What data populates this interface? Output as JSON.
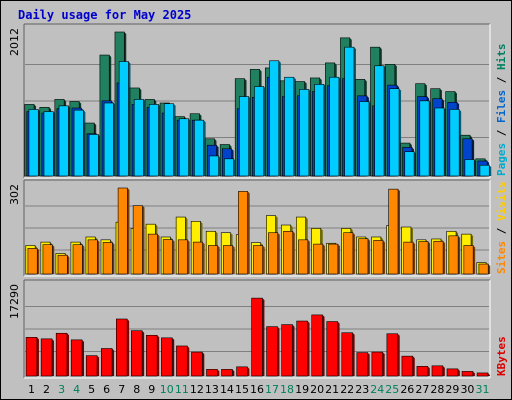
{
  "chart_data": {
    "type": "bar",
    "title": "Daily usage for May 2025",
    "categories": [
      "1",
      "2",
      "3",
      "4",
      "5",
      "6",
      "7",
      "8",
      "9",
      "10",
      "11",
      "12",
      "13",
      "14",
      "15",
      "16",
      "17",
      "18",
      "19",
      "20",
      "21",
      "22",
      "23",
      "24",
      "25",
      "26",
      "27",
      "28",
      "29",
      "30",
      "31"
    ],
    "weekend_days": [
      "3",
      "4",
      "10",
      "11",
      "17",
      "18",
      "24",
      "25",
      "31"
    ],
    "panels": [
      {
        "id": "hits",
        "ymax_label": "2012",
        "ymax": 2012,
        "legend": [
          {
            "text": "Pages",
            "color": "#00aacc"
          },
          {
            "text": " / ",
            "color": "#000000"
          },
          {
            "text": "Files",
            "color": "#0066cc"
          },
          {
            "text": " / ",
            "color": "#000000"
          },
          {
            "text": "Hits",
            "color": "#008060"
          }
        ],
        "series": [
          {
            "name": "Hits",
            "color": "#208060",
            "values": [
              1000,
              960,
              1070,
              1040,
              740,
              1690,
              2012,
              1230,
              1070,
              1020,
              830,
              870,
              520,
              440,
              1360,
              1490,
              1510,
              1330,
              1320,
              1370,
              1580,
              1930,
              1350,
              1800,
              1560,
              460,
              1290,
              1220,
              1180,
              570,
              240
            ]
          },
          {
            "name": "Files",
            "color": "#0044cc",
            "values": [
              900,
              880,
              940,
              950,
              590,
              1050,
              1300,
              1000,
              960,
              880,
              780,
              780,
              430,
              380,
              940,
              1100,
              1380,
              1110,
              1120,
              1180,
              1260,
              1360,
              1120,
              980,
              1270,
              400,
              1110,
              1080,
              1030,
              520,
              210
            ]
          },
          {
            "name": "Pages",
            "color": "#00ccff",
            "values": [
              930,
              900,
              980,
              920,
              580,
              1020,
              1600,
              1070,
              1000,
              1010,
              800,
              780,
              280,
              240,
              1110,
              1250,
              1610,
              1380,
              1210,
              1280,
              1380,
              1800,
              1040,
              1540,
              1220,
              340,
              1050,
              950,
              930,
              230,
              150
            ]
          }
        ]
      },
      {
        "id": "visits",
        "ymax_label": "302",
        "ymax": 302,
        "legend": [
          {
            "text": "Sites",
            "color": "#ff8800"
          },
          {
            "text": " / ",
            "color": "#000000"
          },
          {
            "text": "Visits",
            "color": "#ffcc00"
          }
        ],
        "series": [
          {
            "name": "Visits",
            "color": "#ffee00",
            "values": [
              100,
              112,
              72,
              112,
              130,
              120,
              182,
              160,
              175,
              130,
              200,
              185,
              150,
              145,
              138,
              110,
              205,
              172,
              200,
              160,
              108,
              160,
              130,
              130,
              170,
              165,
              120,
              123,
              150,
              140,
              40
            ]
          },
          {
            "name": "Sites",
            "color": "#ff8800",
            "values": [
              90,
              103,
              66,
              103,
              120,
              111,
              302,
              240,
              140,
              121,
              120,
              112,
              100,
              100,
              290,
              100,
              145,
              150,
              120,
              105,
              105,
              145,
              124,
              118,
              298,
              112,
              114,
              115,
              134,
              100,
              35
            ]
          }
        ]
      },
      {
        "id": "kbytes",
        "ymax_label": "17290",
        "ymax": 17290,
        "legend": [
          {
            "text": "KBytes",
            "color": "#dd0000"
          }
        ],
        "series": [
          {
            "name": "KBytes",
            "color": "#ff0000",
            "values": [
              7600,
              7300,
              8400,
              7100,
              4000,
              5400,
              11200,
              8900,
              8000,
              7500,
              5900,
              4700,
              1300,
              1300,
              1800,
              15300,
              9700,
              10100,
              10800,
              12000,
              10700,
              8500,
              4600,
              4700,
              8300,
              3900,
              1900,
              2000,
              1400,
              900,
              600
            ]
          }
        ]
      }
    ]
  }
}
